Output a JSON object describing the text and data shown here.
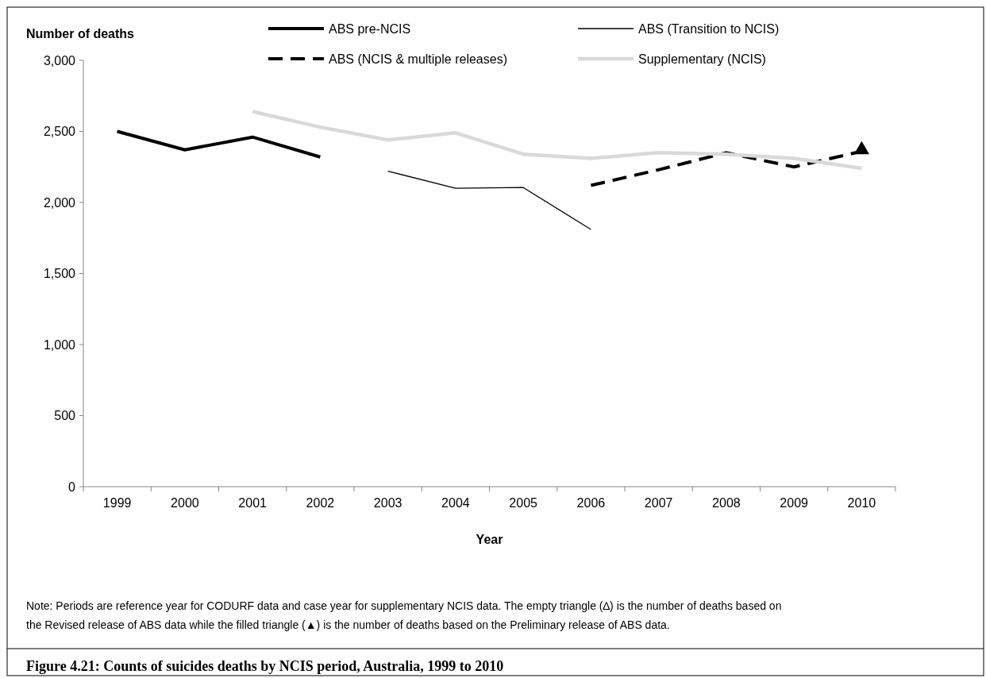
{
  "chart_data": {
    "type": "line",
    "title": "Figure 4.21: Counts of suicides deaths by NCIS period, Australia, 1999 to 2010",
    "xlabel": "Year",
    "ylabel": "Number of deaths",
    "categories": [
      "1999",
      "2000",
      "2001",
      "2002",
      "2003",
      "2004",
      "2005",
      "2006",
      "2007",
      "2008",
      "2009",
      "2010"
    ],
    "series": [
      {
        "name": "ABS pre-NCIS",
        "color": "#000000",
        "line_style": "solid",
        "values": [
          2500,
          2370,
          2460,
          2320,
          null,
          null,
          null,
          null,
          null,
          null,
          null,
          null
        ]
      },
      {
        "name": "ABS (Transition to NCIS)",
        "color": "#000000",
        "line_style": "solid",
        "values": [
          null,
          null,
          null,
          null,
          2220,
          2100,
          2105,
          1810,
          null,
          null,
          null,
          null
        ]
      },
      {
        "name": "ABS (NCIS & multiple releases)",
        "color": "#000000",
        "line_style": "dashed",
        "values": [
          null,
          null,
          null,
          null,
          null,
          null,
          null,
          2120,
          2230,
          2350,
          2250,
          2360
        ]
      },
      {
        "name": "Supplementary (NCIS)",
        "color": "#d9d9d9",
        "line_style": "solid",
        "values": [
          null,
          null,
          2640,
          2530,
          2440,
          2490,
          2340,
          2310,
          2350,
          2340,
          2310,
          2240
        ]
      },
      {
        "type": "scatter",
        "color": "#000000",
        "marker": "triangle",
        "values": [
          null,
          null,
          null,
          null,
          null,
          null,
          null,
          null,
          null,
          null,
          null,
          2370
        ]
      }
    ],
    "ylim": [
      0,
      3000
    ],
    "yticks": [
      0,
      {
        "value": 500,
        "label": "500"
      },
      {
        "value": 1000,
        "label": "1,000"
      },
      {
        "value": 1500,
        "label": "1,500"
      },
      {
        "value": 2000,
        "label": "2,000"
      },
      {
        "value": 2500,
        "label": "2,500"
      },
      {
        "value": 3000,
        "label": "3,000"
      }
    ],
    "legend": "top",
    "grid": false,
    "annotations": [
      "Note: Periods are reference year for CODURF data and case year for supplementary NCIS data. The empty triangle (∆) is the number of deaths based on the Revised release of ABS data while the filled triangle (▲) is the number of deaths based on the Preliminary release of ABS data."
    ]
  }
}
